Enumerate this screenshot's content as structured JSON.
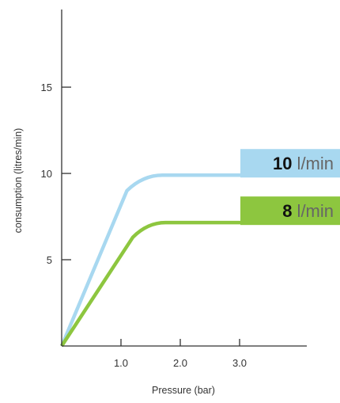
{
  "chart_data": {
    "type": "line",
    "xlabel": "Pressure (bar)",
    "ylabel": "consumption (litres/min)",
    "xlim": [
      0,
      4.0
    ],
    "ylim": [
      0,
      19.5
    ],
    "x_ticks": [
      1.0,
      2.0,
      3.0
    ],
    "x_tick_labels": [
      "1.0",
      "2.0",
      "3.0"
    ],
    "y_ticks": [
      5,
      10,
      15
    ],
    "y_tick_labels": [
      "5",
      "10",
      "15"
    ],
    "grid": false,
    "series": [
      {
        "name": "10 l/min",
        "label_value": "10",
        "label_unit": "l/min",
        "color": "#a8d8f0",
        "x": [
          0,
          1.1,
          1.7,
          3.5
        ],
        "y": [
          0,
          9.0,
          9.9,
          9.9
        ]
      },
      {
        "name": "8 l/min",
        "label_value": "8",
        "label_unit": "l/min",
        "color": "#8dc63f",
        "x": [
          0,
          1.2,
          1.75,
          3.5
        ],
        "y": [
          0,
          6.3,
          7.15,
          7.15
        ]
      }
    ]
  }
}
